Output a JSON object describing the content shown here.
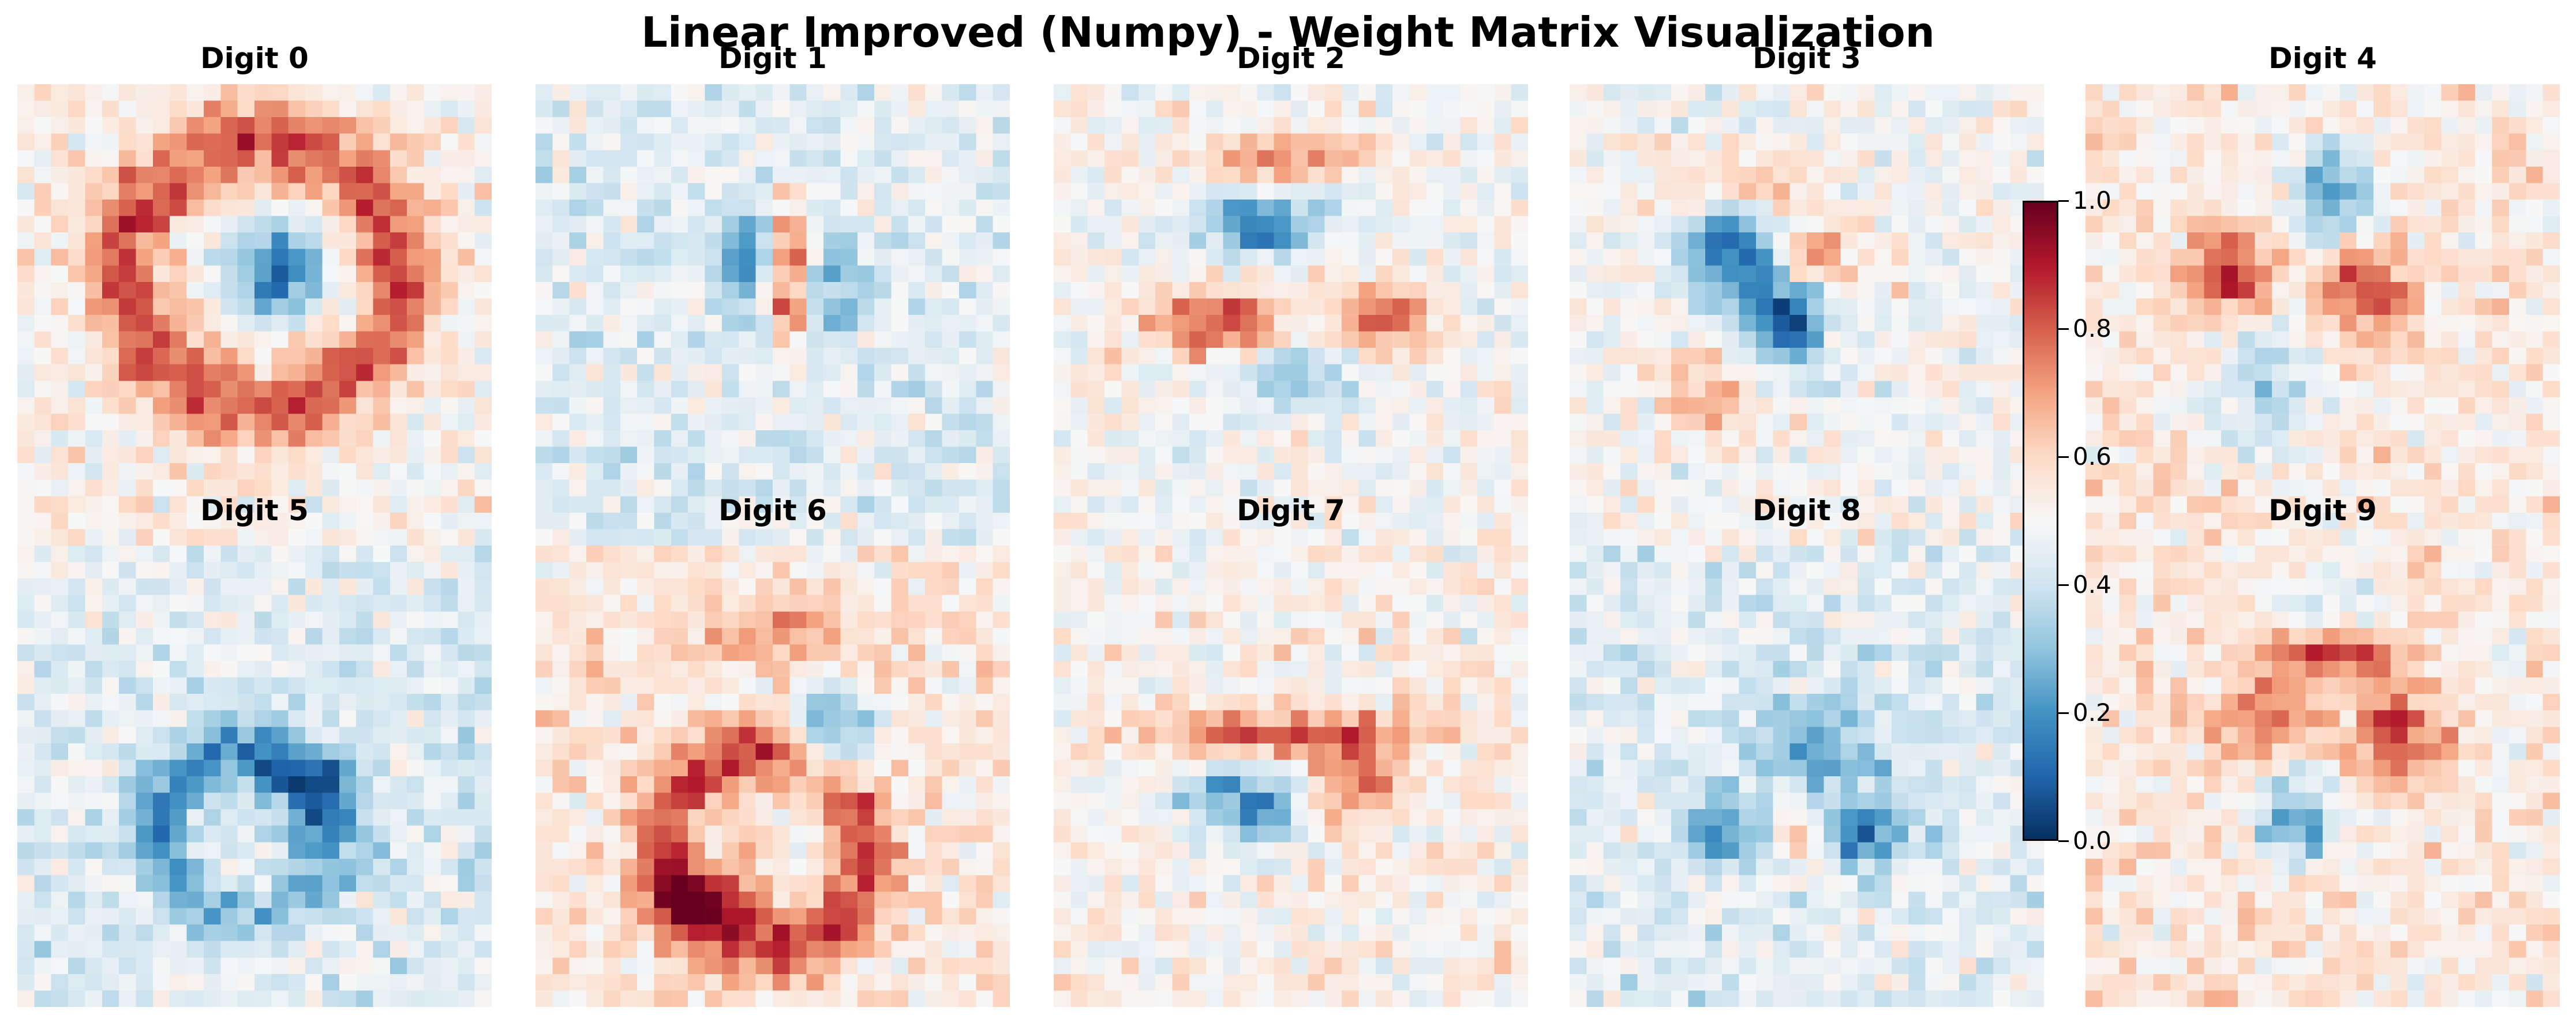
{
  "chart_data": {
    "type": "heatmap",
    "title": "Linear Improved (Numpy) - Weight Matrix Visualization",
    "colormap": "RdBu_r",
    "grid": false,
    "colorbar": {
      "range": [
        0.0,
        1.0
      ],
      "ticks": [
        0.0,
        0.2,
        0.4,
        0.6,
        0.8,
        1.0
      ],
      "tick_labels": [
        "0.0",
        "0.2",
        "0.4",
        "0.6",
        "0.8",
        "1.0"
      ],
      "colors": [
        "#053061",
        "#2166ac",
        "#4393c3",
        "#92c5de",
        "#d1e5f0",
        "#f7f7f7",
        "#fddbc7",
        "#f4a582",
        "#d6604d",
        "#b2182b",
        "#67001f"
      ]
    },
    "grid_shape": [
      28,
      28
    ],
    "panels": [
      {
        "title": "Digit 0",
        "digit": 0
      },
      {
        "title": "Digit 1",
        "digit": 1
      },
      {
        "title": "Digit 2",
        "digit": 2
      },
      {
        "title": "Digit 3",
        "digit": 3
      },
      {
        "title": "Digit 4",
        "digit": 4
      },
      {
        "title": "Digit 5",
        "digit": 5
      },
      {
        "title": "Digit 6",
        "digit": 6
      },
      {
        "title": "Digit 7",
        "digit": 7
      },
      {
        "title": "Digit 8",
        "digit": 8
      },
      {
        "title": "Digit 9",
        "digit": 9
      }
    ]
  }
}
